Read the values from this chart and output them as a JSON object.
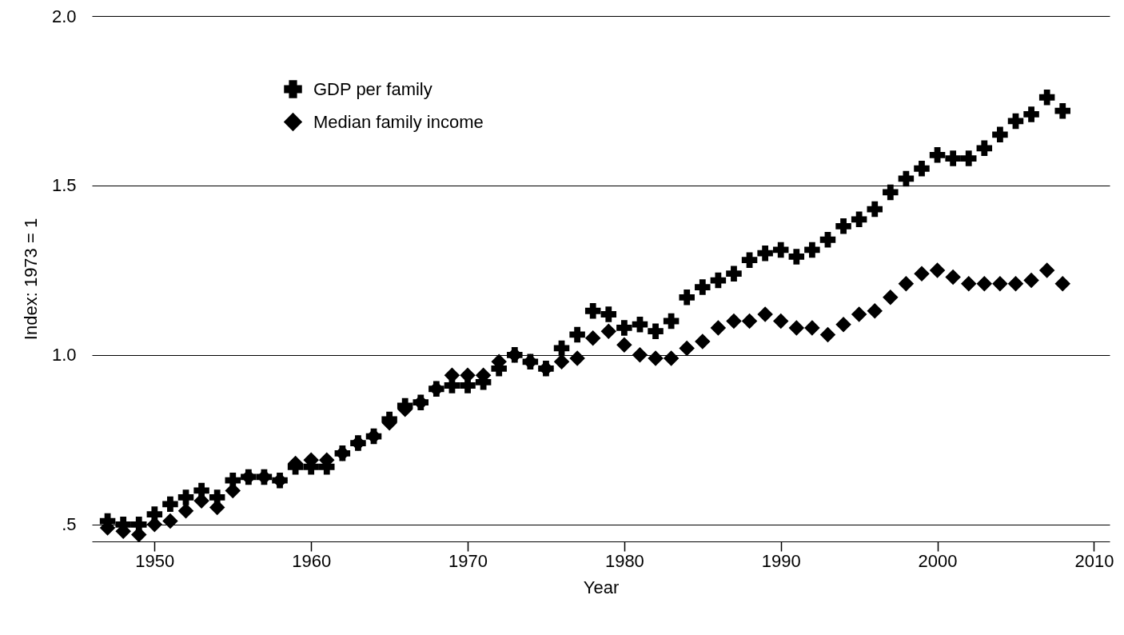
{
  "chart_data": {
    "type": "scatter",
    "xlabel": "Year",
    "ylabel": "Index: 1973 = 1",
    "x": [
      1947,
      1948,
      1949,
      1950,
      1951,
      1952,
      1953,
      1954,
      1955,
      1956,
      1957,
      1958,
      1959,
      1960,
      1961,
      1962,
      1963,
      1964,
      1965,
      1966,
      1967,
      1968,
      1969,
      1970,
      1971,
      1972,
      1973,
      1974,
      1975,
      1976,
      1977,
      1978,
      1979,
      1980,
      1981,
      1982,
      1983,
      1984,
      1985,
      1986,
      1987,
      1988,
      1989,
      1990,
      1991,
      1992,
      1993,
      1994,
      1995,
      1996,
      1997,
      1998,
      1999,
      2000,
      2001,
      2002,
      2003,
      2004,
      2005,
      2006,
      2007,
      2008
    ],
    "series": [
      {
        "name": "GDP per family",
        "color": "#000000",
        "marker": "cross",
        "values": [
          0.51,
          0.5,
          0.5,
          0.53,
          0.56,
          0.58,
          0.6,
          0.58,
          0.63,
          0.64,
          0.64,
          0.63,
          0.67,
          0.67,
          0.67,
          0.71,
          0.74,
          0.76,
          0.81,
          0.85,
          0.86,
          0.9,
          0.91,
          0.91,
          0.92,
          0.96,
          1.0,
          0.98,
          0.96,
          1.02,
          1.06,
          1.13,
          1.12,
          1.08,
          1.09,
          1.07,
          1.1,
          1.17,
          1.2,
          1.22,
          1.24,
          1.28,
          1.3,
          1.31,
          1.29,
          1.31,
          1.34,
          1.38,
          1.4,
          1.43,
          1.48,
          1.52,
          1.55,
          1.59,
          1.58,
          1.58,
          1.61,
          1.65,
          1.69,
          1.71,
          1.76,
          1.72
        ]
      },
      {
        "name": "Median family income",
        "color": "#000000",
        "marker": "diamond",
        "values": [
          0.49,
          0.48,
          0.47,
          0.5,
          0.51,
          0.54,
          0.57,
          0.55,
          0.6,
          0.64,
          0.64,
          0.63,
          0.68,
          0.69,
          0.69,
          0.71,
          0.74,
          0.76,
          0.8,
          0.84,
          0.86,
          0.9,
          0.94,
          0.94,
          0.94,
          0.98,
          1.0,
          0.98,
          0.96,
          0.98,
          0.99,
          1.05,
          1.07,
          1.03,
          1.0,
          0.99,
          0.99,
          1.02,
          1.04,
          1.08,
          1.1,
          1.1,
          1.12,
          1.1,
          1.08,
          1.08,
          1.06,
          1.09,
          1.12,
          1.13,
          1.17,
          1.21,
          1.24,
          1.25,
          1.23,
          1.21,
          1.21,
          1.21,
          1.21,
          1.22,
          1.25,
          1.21
        ]
      }
    ],
    "xlim": [
      1946,
      2011
    ],
    "xticks": [
      1950,
      1960,
      1970,
      1980,
      1990,
      2000,
      2010
    ],
    "ylim": [
      0.45,
      2.0
    ],
    "yticks": [
      {
        "value": 0.5,
        "label": ".5"
      },
      {
        "value": 1.0,
        "label": "1.0"
      },
      {
        "value": 1.5,
        "label": "1.5"
      },
      {
        "value": 2.0,
        "label": "2.0"
      }
    ],
    "grid": "y",
    "legend": "top left"
  }
}
